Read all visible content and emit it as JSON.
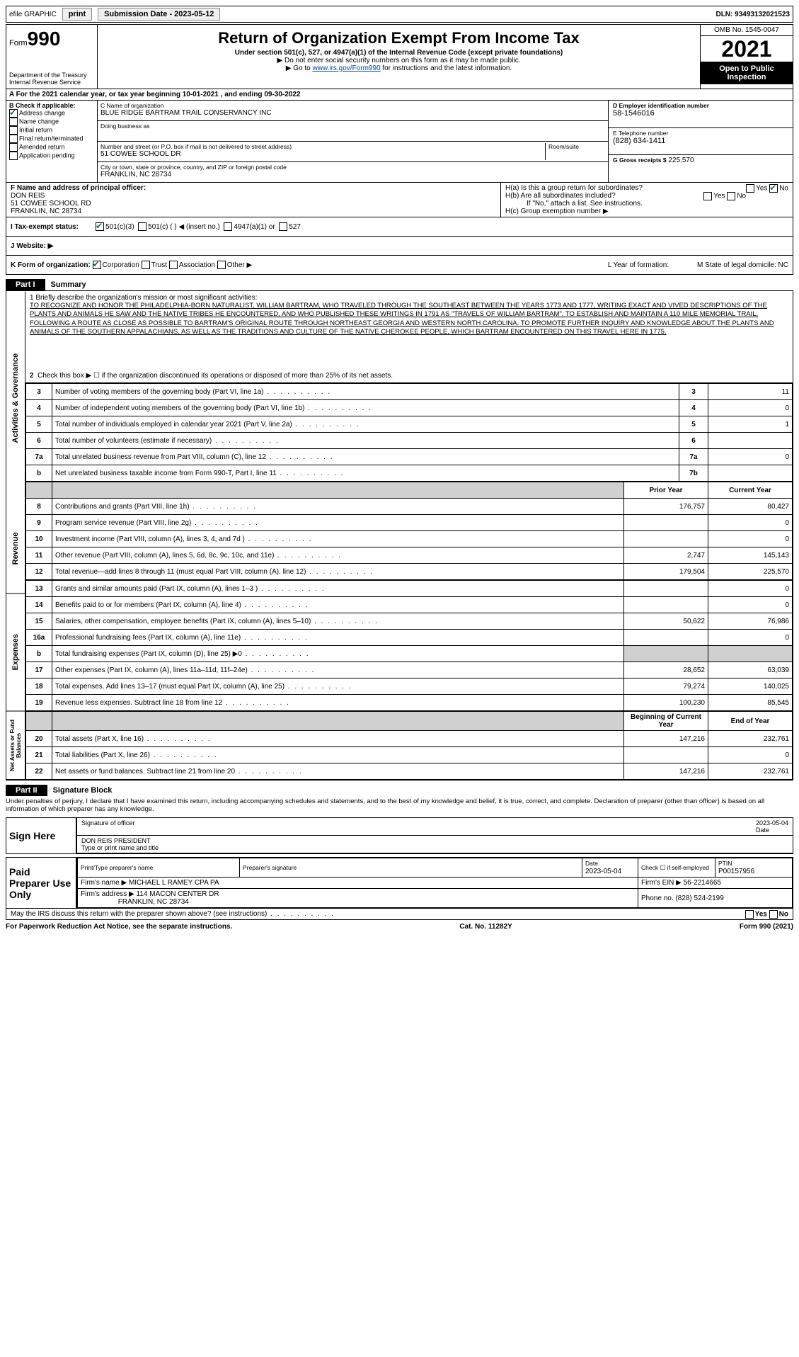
{
  "top_bar": {
    "efile_label": "efile GRAPHIC",
    "print_btn": "print",
    "submission_label": "Submission Date - 2023-05-12",
    "dln": "DLN: 93493132021523"
  },
  "header": {
    "form_prefix": "Form",
    "form_number": "990",
    "dept": "Department of the Treasury",
    "irs": "Internal Revenue Service",
    "title": "Return of Organization Exempt From Income Tax",
    "subtitle": "Under section 501(c), 527, or 4947(a)(1) of the Internal Revenue Code (except private foundations)",
    "line1": "▶ Do not enter social security numbers on this form as it may be made public.",
    "line2_pre": "▶ Go to ",
    "line2_link": "www.irs.gov/Form990",
    "line2_post": " for instructions and the latest information.",
    "omb": "OMB No. 1545-0047",
    "year": "2021",
    "open": "Open to Public Inspection"
  },
  "row_a": "A For the 2021 calendar year, or tax year beginning 10-01-2021  , and ending 09-30-2022",
  "col_b": {
    "header": "B Check if applicable:",
    "items": [
      "Address change",
      "Name change",
      "Initial return",
      "Final return/terminated",
      "Amended return",
      "Application pending"
    ]
  },
  "col_c": {
    "name_label": "C Name of organization",
    "name": "BLUE RIDGE BARTRAM TRAIL CONSERVANCY INC",
    "dba_label": "Doing business as",
    "dba": "",
    "addr_label": "Number and street (or P.O. box if mail is not delivered to street address)",
    "addr": "51 COWEE SCHOOL DR",
    "room_label": "Room/suite",
    "city_label": "City or town, state or province, country, and ZIP or foreign postal code",
    "city": "FRANKLIN, NC  28734"
  },
  "col_d": {
    "label": "D Employer identification number",
    "value": "58-1546016"
  },
  "col_e": {
    "label": "E Telephone number",
    "value": "(828) 634-1411"
  },
  "col_g": {
    "label": "G Gross receipts $",
    "value": "225,570"
  },
  "col_f": {
    "label": "F  Name and address of principal officer:",
    "name": "DON REIS",
    "addr1": "51 COWEE SCHOOL RD",
    "addr2": "FRANKLIN, NC  28734"
  },
  "col_h": {
    "ha": "H(a)  Is this a group return for subordinates?",
    "hb": "H(b)  Are all subordinates included?",
    "hb_note": "If \"No,\" attach a list. See instructions.",
    "hc": "H(c)  Group exemption number ▶"
  },
  "row_i": {
    "label_i": "I  Tax-exempt status:",
    "opts": [
      "501(c)(3)",
      "501(c) (  ) ◀ (insert no.)",
      "4947(a)(1) or",
      "527"
    ]
  },
  "row_j": {
    "label": "J  Website: ▶"
  },
  "row_k": {
    "label": "K Form of organization:",
    "opts": [
      "Corporation",
      "Trust",
      "Association",
      "Other ▶"
    ],
    "l": "L Year of formation:",
    "m": "M State of legal domicile: NC"
  },
  "part1": {
    "label": "Part I",
    "title": "Summary",
    "line1_label": "1  Briefly describe the organization's mission or most significant activities:",
    "mission": "TO RECOGNIZE AND HONOR THE PHILADELPHIA-BORN NATURALIST, WILLIAM BARTRAM, WHO TRAVELED THROUGH THE SOUTHEAST BETWEEN THE YEARS 1773 AND 1777, WRITING EXACT AND VIVED DESCRIPTIONS OF THE PLANTS AND ANIMALS HE SAW AND THE NATIVE TRIBES HE ENCOUNTERED, AND WHO PUBLISHED THESE WRITINGS IN 1791 AS \"TRAVELS OF WILLIAM BARTRAM\". TO ESTABLISH AND MAINTAIN A 110 MILE MEMORIAL TRAIL, FOLLOWING A ROUTE AS CLOSE AS POSSIBLE TO BARTRAM'S ORIGINAL ROUTE THROUGH NORTHEAST GEORGIA AND WESTERN NORTH CAROLINA. TO PROMOTE FURTHER INQUIRY AND KNOWLEDGE ABOUT THE PLANTS AND ANIMALS OF THE SOUTHERN APPALACHIANS, AS WELL AS THE TRADITIONS AND CULTURE OF THE NATIVE CHEROKEE PEOPLE, WHICH BARTRAM ENCOUNTERED ON THIS TRAVEL HERE IN 1775.",
    "line2": "Check this box ▶ ☐ if the organization discontinued its operations or disposed of more than 25% of its net assets.",
    "vert1": "Activities & Governance",
    "vert2": "Revenue",
    "vert3": "Expenses",
    "vert4": "Net Assets or Fund Balances",
    "lines_ag": [
      {
        "n": "3",
        "d": "Number of voting members of the governing body (Part VI, line 1a)",
        "ln": "3",
        "v": "11"
      },
      {
        "n": "4",
        "d": "Number of independent voting members of the governing body (Part VI, line 1b)",
        "ln": "4",
        "v": "0"
      },
      {
        "n": "5",
        "d": "Total number of individuals employed in calendar year 2021 (Part V, line 2a)",
        "ln": "5",
        "v": "1"
      },
      {
        "n": "6",
        "d": "Total number of volunteers (estimate if necessary)",
        "ln": "6",
        "v": ""
      },
      {
        "n": "7a",
        "d": "Total unrelated business revenue from Part VIII, column (C), line 12",
        "ln": "7a",
        "v": "0"
      },
      {
        "n": "b",
        "d": "Net unrelated business taxable income from Form 990-T, Part I, line 11",
        "ln": "7b",
        "v": ""
      }
    ],
    "col_headers": {
      "prior": "Prior Year",
      "current": "Current Year",
      "begin": "Beginning of Current Year",
      "end": "End of Year"
    },
    "lines_rev": [
      {
        "n": "8",
        "d": "Contributions and grants (Part VIII, line 1h)",
        "p": "176,757",
        "c": "80,427"
      },
      {
        "n": "9",
        "d": "Program service revenue (Part VIII, line 2g)",
        "p": "",
        "c": "0"
      },
      {
        "n": "10",
        "d": "Investment income (Part VIII, column (A), lines 3, 4, and 7d )",
        "p": "",
        "c": "0"
      },
      {
        "n": "11",
        "d": "Other revenue (Part VIII, column (A), lines 5, 6d, 8c, 9c, 10c, and 11e)",
        "p": "2,747",
        "c": "145,143"
      },
      {
        "n": "12",
        "d": "Total revenue—add lines 8 through 11 (must equal Part VIII, column (A), line 12)",
        "p": "179,504",
        "c": "225,570"
      }
    ],
    "lines_exp": [
      {
        "n": "13",
        "d": "Grants and similar amounts paid (Part IX, column (A), lines 1–3 )",
        "p": "",
        "c": "0"
      },
      {
        "n": "14",
        "d": "Benefits paid to or for members (Part IX, column (A), line 4)",
        "p": "",
        "c": "0"
      },
      {
        "n": "15",
        "d": "Salaries, other compensation, employee benefits (Part IX, column (A), lines 5–10)",
        "p": "50,622",
        "c": "76,986"
      },
      {
        "n": "16a",
        "d": "Professional fundraising fees (Part IX, column (A), line 11e)",
        "p": "",
        "c": "0"
      },
      {
        "n": "b",
        "d": "Total fundraising expenses (Part IX, column (D), line 25) ▶0",
        "p": "grey",
        "c": "grey"
      },
      {
        "n": "17",
        "d": "Other expenses (Part IX, column (A), lines 11a–11d, 11f–24e)",
        "p": "28,652",
        "c": "63,039"
      },
      {
        "n": "18",
        "d": "Total expenses. Add lines 13–17 (must equal Part IX, column (A), line 25)",
        "p": "79,274",
        "c": "140,025"
      },
      {
        "n": "19",
        "d": "Revenue less expenses. Subtract line 18 from line 12",
        "p": "100,230",
        "c": "85,545"
      }
    ],
    "lines_net": [
      {
        "n": "20",
        "d": "Total assets (Part X, line 16)",
        "p": "147,216",
        "c": "232,761"
      },
      {
        "n": "21",
        "d": "Total liabilities (Part X, line 26)",
        "p": "",
        "c": "0"
      },
      {
        "n": "22",
        "d": "Net assets or fund balances. Subtract line 21 from line 20",
        "p": "147,216",
        "c": "232,761"
      }
    ]
  },
  "part2": {
    "label": "Part II",
    "title": "Signature Block",
    "jurat": "Under penalties of perjury, I declare that I have examined this return, including accompanying schedules and statements, and to the best of my knowledge and belief, it is true, correct, and complete. Declaration of preparer (other than officer) is based on all information of which preparer has any knowledge.",
    "sign_here": "Sign Here",
    "sig_of_officer": "Signature of officer",
    "date_label": "Date",
    "sig_date": "2023-05-04",
    "officer_name": "DON REIS  PRESIDENT",
    "type_name": "Type or print name and title",
    "paid_prep": "Paid Preparer Use Only",
    "p_name_h": "Print/Type preparer's name",
    "p_sig_h": "Preparer's signature",
    "p_date_h": "Date",
    "p_date": "2023-05-04",
    "p_check": "Check ☐ if self-employed",
    "p_ptin_h": "PTIN",
    "p_ptin": "P00157956",
    "firm_name_l": "Firm's name    ▶",
    "firm_name": "MICHAEL L RAMEY CPA PA",
    "firm_ein_l": "Firm's EIN ▶",
    "firm_ein": "56-2214665",
    "firm_addr_l": "Firm's address ▶",
    "firm_addr1": "114 MACON CENTER DR",
    "firm_addr2": "FRANKLIN, NC  28734",
    "phone_l": "Phone no.",
    "phone": "(828) 524-2199",
    "discuss": "May the IRS discuss this return with the preparer shown above? (see instructions)"
  },
  "footer": {
    "left": "For Paperwork Reduction Act Notice, see the separate instructions.",
    "mid": "Cat. No. 11282Y",
    "right": "Form 990 (2021)"
  }
}
